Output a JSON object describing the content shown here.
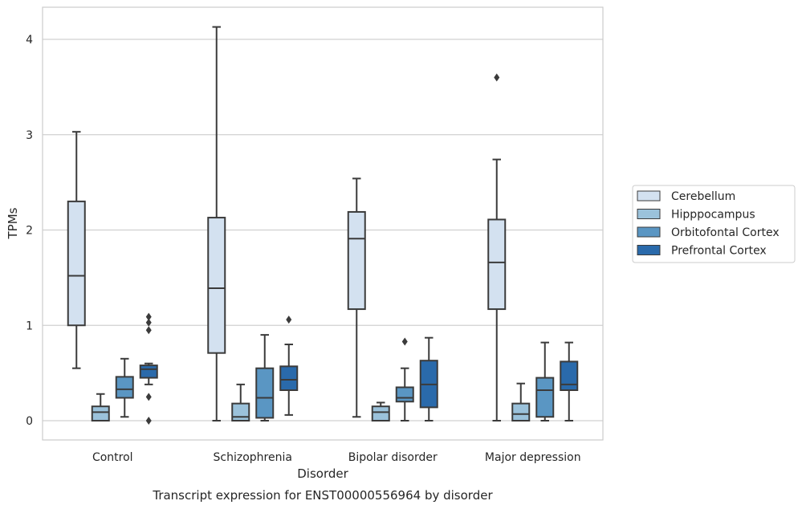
{
  "chart_data": {
    "type": "box",
    "title": "Transcript expression for ENST00000556964 by disorder",
    "xlabel": "Disorder",
    "ylabel": "TPMs",
    "categories": [
      "Control",
      "Schizophrenia",
      "Bipolar disorder",
      "Major depression"
    ],
    "ylim": [
      -0.2,
      4.35
    ],
    "yticks": [
      0,
      1,
      2,
      3,
      4
    ],
    "grid": "horizontal",
    "legend_position": "right",
    "series": [
      {
        "name": "Cerebellum",
        "color": "#d3e1f0",
        "boxes": [
          {
            "whislo": 0.55,
            "q1": 1.0,
            "med": 1.52,
            "q3": 2.3,
            "whishi": 3.03,
            "fliers": []
          },
          {
            "whislo": 0.0,
            "q1": 0.71,
            "med": 1.39,
            "q3": 2.13,
            "whishi": 4.13,
            "fliers": []
          },
          {
            "whislo": 0.04,
            "q1": 1.17,
            "med": 1.91,
            "q3": 2.19,
            "whishi": 2.54,
            "fliers": []
          },
          {
            "whislo": 0.0,
            "q1": 1.17,
            "med": 1.66,
            "q3": 2.11,
            "whishi": 2.74,
            "fliers": [
              3.6
            ]
          }
        ]
      },
      {
        "name": "Hipppocampus",
        "color": "#9bc2db",
        "boxes": [
          {
            "whislo": 0.0,
            "q1": 0.0,
            "med": 0.09,
            "q3": 0.15,
            "whishi": 0.28,
            "fliers": []
          },
          {
            "whislo": 0.0,
            "q1": 0.0,
            "med": 0.04,
            "q3": 0.18,
            "whishi": 0.38,
            "fliers": []
          },
          {
            "whislo": 0.0,
            "q1": 0.0,
            "med": 0.09,
            "q3": 0.15,
            "whishi": 0.19,
            "fliers": []
          },
          {
            "whislo": 0.0,
            "q1": 0.0,
            "med": 0.07,
            "q3": 0.18,
            "whishi": 0.39,
            "fliers": []
          }
        ]
      },
      {
        "name": "Orbitofontal Cortex",
        "color": "#5a96c3",
        "boxes": [
          {
            "whislo": 0.04,
            "q1": 0.24,
            "med": 0.33,
            "q3": 0.46,
            "whishi": 0.65,
            "fliers": []
          },
          {
            "whislo": 0.0,
            "q1": 0.03,
            "med": 0.24,
            "q3": 0.55,
            "whishi": 0.9,
            "fliers": []
          },
          {
            "whislo": 0.0,
            "q1": 0.2,
            "med": 0.24,
            "q3": 0.35,
            "whishi": 0.55,
            "fliers": [
              0.83
            ]
          },
          {
            "whislo": 0.0,
            "q1": 0.04,
            "med": 0.32,
            "q3": 0.45,
            "whishi": 0.82,
            "fliers": []
          }
        ]
      },
      {
        "name": "Prefrontal Cortex",
        "color": "#2a6aab",
        "boxes": [
          {
            "whislo": 0.38,
            "q1": 0.45,
            "med": 0.54,
            "q3": 0.58,
            "whishi": 0.6,
            "fliers": [
              1.09,
              1.03,
              0.95,
              0.25,
              0.0
            ]
          },
          {
            "whislo": 0.06,
            "q1": 0.32,
            "med": 0.43,
            "q3": 0.57,
            "whishi": 0.8,
            "fliers": [
              1.06
            ]
          },
          {
            "whislo": 0.0,
            "q1": 0.14,
            "med": 0.38,
            "q3": 0.63,
            "whishi": 0.87,
            "fliers": []
          },
          {
            "whislo": 0.0,
            "q1": 0.32,
            "med": 0.38,
            "q3": 0.62,
            "whishi": 0.82,
            "fliers": []
          }
        ]
      }
    ]
  }
}
